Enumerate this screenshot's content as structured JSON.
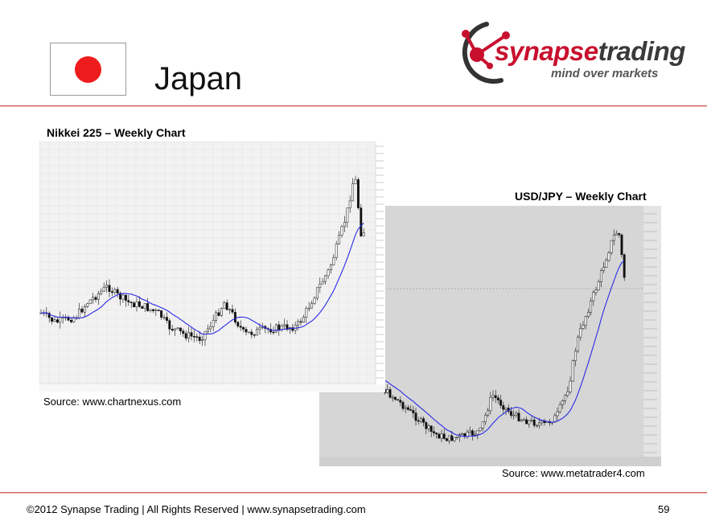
{
  "slide": {
    "title": "Japan",
    "flag_colors": {
      "field": "#ffffff",
      "disc": "#ee1c1c"
    }
  },
  "logo": {
    "word_part1": "synapse",
    "word_part2": "trading",
    "tagline": "mind over markets",
    "colors": {
      "accent": "#c8102e",
      "dark": "#3a3a3a"
    }
  },
  "charts": {
    "nikkei": {
      "title": "Nikkei 225 – Weekly Chart",
      "source": "Source: www.chartnexus.com"
    },
    "usdjpy": {
      "title": "USD/JPY – Weekly Chart",
      "source": "Source: www.metatrader4.com"
    }
  },
  "footer": {
    "copyright": "©2012 Synapse Trading | All Rights Reserved | www.synapsetrading.com",
    "page_number": "59"
  }
}
